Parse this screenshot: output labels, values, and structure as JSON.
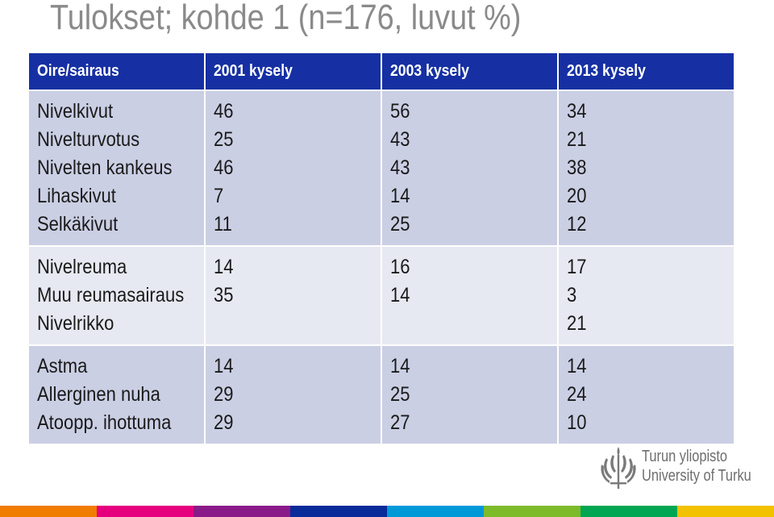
{
  "title": "Tulokset; kohde 1 (n=176, luvut %)",
  "table": {
    "headers": [
      "Oire/sairaus",
      "2001 kysely",
      "2003 kysely",
      "2013 kysely"
    ],
    "groups": [
      {
        "conditions": [
          "Nivelkivut",
          "Nivelturvotus",
          "Nivelten kankeus",
          "Lihaskivut",
          "Selkäkivut"
        ],
        "y2001": [
          "46",
          "25",
          "46",
          "7",
          "11"
        ],
        "y2003": [
          "56",
          "43",
          "43",
          "14",
          "25"
        ],
        "y2013": [
          "34",
          "21",
          "38",
          "20",
          "12"
        ]
      },
      {
        "conditions": [
          "Nivelreuma",
          "Muu reumasairaus",
          "Nivelrikko"
        ],
        "y2001": [
          "14",
          "35"
        ],
        "y2003": [
          "16",
          "14"
        ],
        "y2013": [
          "17",
          "3",
          "21"
        ]
      },
      {
        "conditions": [
          "Astma",
          "Allerginen nuha",
          "Atoopp. ihottuma"
        ],
        "y2001": [
          "14",
          "29",
          "29"
        ],
        "y2003": [
          "14",
          "25",
          "27"
        ],
        "y2013": [
          "14",
          "24",
          "10"
        ]
      }
    ]
  },
  "logo": {
    "line1": "Turun yliopisto",
    "line2": "University of Turku",
    "icon": "university-emblem-icon"
  },
  "colors": {
    "header_bg": "#1630a3",
    "band_dark": "#cbcfe4",
    "band_light": "#e7e9f2",
    "title": "#8a8a8a",
    "stripe": [
      "#f07c00",
      "#e6007e",
      "#8b1a89",
      "#0a2a9a",
      "#0099d8",
      "#7dbb2a",
      "#00a651",
      "#f2c200"
    ]
  }
}
